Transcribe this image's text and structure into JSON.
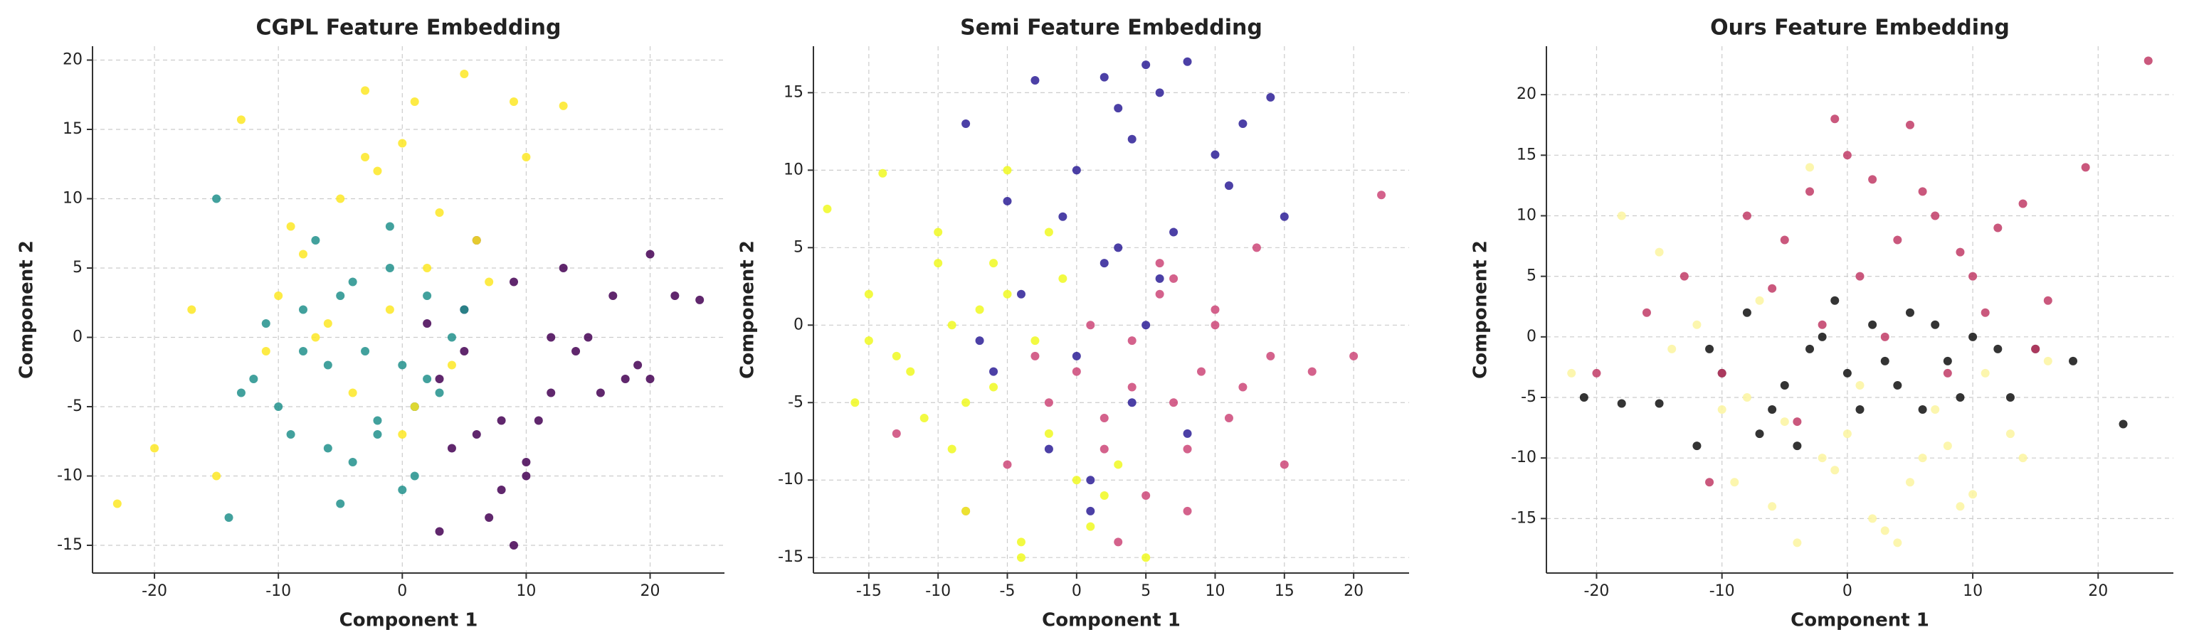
{
  "chart_data": [
    {
      "type": "scatter",
      "title": "CGPL Feature Embedding",
      "xlabel": "Component 1",
      "ylabel": "Component 2",
      "xlim": [
        -25,
        26
      ],
      "ylim": [
        -17,
        21
      ],
      "xticks": [
        -20,
        -10,
        0,
        10,
        20
      ],
      "yticks": [
        -15,
        -10,
        -5,
        0,
        5,
        10,
        15,
        20
      ],
      "grid": true,
      "series": [
        {
          "color": "#440154",
          "x": [
            20,
            22,
            24,
            19,
            15,
            12,
            10,
            9,
            8,
            6,
            5,
            3,
            2,
            13,
            11,
            17,
            7,
            4,
            9,
            14,
            16,
            1,
            10,
            6,
            12,
            18,
            8,
            3,
            5,
            20
          ],
          "y": [
            6,
            3,
            2.7,
            -2,
            0,
            -4,
            -10,
            -15,
            -11,
            -7,
            2,
            -3,
            1,
            5,
            -6,
            3,
            -13,
            -8,
            4,
            -1,
            -4,
            -5,
            -9,
            7,
            0,
            -3,
            -6,
            -14,
            -1,
            -3
          ]
        },
        {
          "color": "#21918c",
          "x": [
            -15,
            -12,
            -10,
            -8,
            -6,
            -5,
            -4,
            -3,
            -2,
            -1,
            0,
            1,
            2,
            3,
            -14,
            -9,
            -7,
            -11,
            -4,
            -2,
            0,
            2,
            -6,
            -13,
            4,
            -5,
            -1,
            -8,
            1,
            5
          ],
          "y": [
            10,
            -3,
            -5,
            2,
            -8,
            -12,
            4,
            -1,
            -7,
            5,
            -2,
            -10,
            3,
            -4,
            -13,
            -7,
            7,
            1,
            -9,
            -6,
            -11,
            -3,
            -2,
            -4,
            0,
            3,
            8,
            -1,
            -5,
            2
          ]
        },
        {
          "color": "#fde725",
          "x": [
            -23,
            -20,
            -13,
            -10,
            -8,
            -5,
            -3,
            -2,
            0,
            1,
            3,
            5,
            6,
            9,
            10,
            13,
            -6,
            -4,
            -1,
            2,
            -15,
            -11,
            -7,
            0,
            4,
            7,
            -9,
            -3,
            1,
            -17
          ],
          "y": [
            -12,
            -8,
            15.7,
            3,
            6,
            10,
            17.8,
            12,
            14,
            17,
            9,
            19,
            7,
            17,
            13,
            16.7,
            1,
            -4,
            2,
            5,
            -10,
            -1,
            0,
            -7,
            -2,
            4,
            8,
            13,
            -5,
            2
          ]
        }
      ]
    },
    {
      "type": "scatter",
      "title": "Semi Feature Embedding",
      "xlabel": "Component 1",
      "ylabel": "Component 2",
      "xlim": [
        -19,
        24
      ],
      "ylim": [
        -16,
        18
      ],
      "xticks": [
        -15,
        -10,
        -5,
        0,
        5,
        10,
        15,
        20
      ],
      "yticks": [
        -15,
        -10,
        -5,
        0,
        5,
        10,
        15
      ],
      "grid": true,
      "series": [
        {
          "color": "#2d1e96",
          "x": [
            -8,
            -5,
            -3,
            0,
            2,
            3,
            4,
            5,
            6,
            7,
            8,
            10,
            12,
            14,
            -2,
            1,
            -6,
            3,
            5,
            -4,
            0,
            2,
            8,
            11,
            -1,
            4,
            6,
            -7,
            1,
            15
          ],
          "y": [
            13,
            8,
            15.8,
            10,
            16,
            14,
            12,
            16.8,
            15,
            6,
            17,
            11,
            13,
            14.7,
            -8,
            -10,
            -3,
            5,
            0,
            2,
            -2,
            4,
            -7,
            9,
            7,
            -5,
            3,
            -1,
            -12,
            7
          ]
        },
        {
          "color": "#cc4778",
          "x": [
            -13,
            -8,
            -5,
            -2,
            0,
            2,
            4,
            6,
            8,
            10,
            12,
            14,
            17,
            20,
            22,
            3,
            5,
            7,
            9,
            11,
            1,
            -3,
            6,
            15,
            8,
            13,
            4,
            10,
            2,
            7
          ],
          "y": [
            -7,
            -12,
            -9,
            -5,
            -3,
            -6,
            -1,
            2,
            -8,
            1,
            -4,
            -2,
            -3,
            -2,
            8.4,
            -14,
            -11,
            -5,
            -3,
            -6,
            0,
            -2,
            4,
            -9,
            -12,
            5,
            -4,
            0,
            -8,
            3
          ]
        },
        {
          "color": "#f0f921",
          "x": [
            -18,
            -16,
            -15,
            -14,
            -12,
            -10,
            -9,
            -8,
            -6,
            -5,
            -4,
            -3,
            -2,
            -1,
            0,
            -11,
            -7,
            -13,
            -4,
            -9,
            -6,
            1,
            3,
            -2,
            -10,
            -15,
            -5,
            -8,
            2,
            5
          ],
          "y": [
            7.5,
            -5,
            2,
            9.8,
            -3,
            6,
            -8,
            -12,
            4,
            10,
            -14,
            -1,
            -7,
            3,
            -10,
            -6,
            1,
            -2,
            -15,
            0,
            -4,
            -13,
            -9,
            6,
            4,
            -1,
            2,
            -5,
            -11,
            -15
          ]
        }
      ]
    },
    {
      "type": "scatter",
      "title": "Ours Feature Embedding",
      "xlabel": "Component 1",
      "ylabel": "Component 2",
      "xlim": [
        -24,
        26
      ],
      "ylim": [
        -19.5,
        24
      ],
      "xticks": [
        -20,
        -10,
        0,
        10,
        20
      ],
      "yticks": [
        -15,
        -10,
        -5,
        0,
        5,
        10,
        15,
        20
      ],
      "grid": true,
      "series": [
        {
          "color": "#111111",
          "x": [
            -21,
            -18,
            -15,
            -12,
            -10,
            -8,
            -6,
            -4,
            -2,
            0,
            2,
            4,
            6,
            8,
            10,
            12,
            15,
            18,
            22,
            -11,
            -5,
            -1,
            3,
            7,
            -7,
            1,
            5,
            9,
            -3,
            13
          ],
          "y": [
            -5,
            -5.5,
            -5.5,
            -9,
            -3,
            2,
            -6,
            -9,
            0,
            -3,
            1,
            -4,
            -6,
            -2,
            0,
            -1,
            -1,
            -2,
            -7.2,
            -1,
            -4,
            3,
            -2,
            1,
            -8,
            -6,
            2,
            -5,
            -1,
            -5
          ]
        },
        {
          "color": "#c13b66",
          "x": [
            -20,
            -16,
            -13,
            -10,
            -8,
            -5,
            -3,
            -1,
            0,
            2,
            4,
            5,
            7,
            10,
            12,
            14,
            16,
            19,
            24,
            -6,
            -2,
            3,
            8,
            11,
            1,
            6,
            9,
            -11,
            15,
            -4
          ],
          "y": [
            -3,
            2,
            5,
            -3,
            10,
            8,
            12,
            18,
            15,
            13,
            8,
            17.5,
            10,
            5,
            9,
            11,
            3,
            14,
            22.8,
            4,
            1,
            0,
            -3,
            2,
            5,
            12,
            7,
            -12,
            -1,
            -7
          ]
        },
        {
          "color": "#fcf5a0",
          "x": [
            -22,
            -18,
            -15,
            -12,
            -9,
            -6,
            -4,
            -2,
            0,
            2,
            4,
            5,
            7,
            10,
            13,
            16,
            -8,
            -1,
            3,
            8,
            -3,
            1,
            6,
            -10,
            11,
            -5,
            9,
            -14,
            14,
            -7
          ],
          "y": [
            -3,
            10,
            7,
            1,
            -12,
            -14,
            -17,
            -10,
            -8,
            -15,
            -17,
            -12,
            -6,
            -13,
            -8,
            -2,
            -5,
            -11,
            -16,
            -9,
            14,
            -4,
            -10,
            -6,
            -3,
            -7,
            -14,
            -1,
            -10,
            3
          ]
        }
      ]
    }
  ]
}
